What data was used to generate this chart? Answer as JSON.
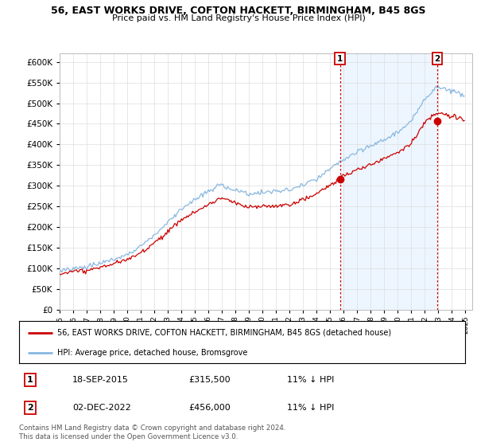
{
  "title": "56, EAST WORKS DRIVE, COFTON HACKETT, BIRMINGHAM, B45 8GS",
  "subtitle": "Price paid vs. HM Land Registry's House Price Index (HPI)",
  "ylim": [
    0,
    620000
  ],
  "yticks": [
    0,
    50000,
    100000,
    150000,
    200000,
    250000,
    300000,
    350000,
    400000,
    450000,
    500000,
    550000,
    600000
  ],
  "xlim_start": 1995.0,
  "xlim_end": 2025.5,
  "xtick_years": [
    1995,
    1996,
    1997,
    1998,
    1999,
    2000,
    2001,
    2002,
    2003,
    2004,
    2005,
    2006,
    2007,
    2008,
    2009,
    2010,
    2011,
    2012,
    2013,
    2014,
    2015,
    2016,
    2017,
    2018,
    2019,
    2020,
    2021,
    2022,
    2023,
    2024,
    2025
  ],
  "hpi_color": "#88b8e0",
  "hpi_fill_color": "#ddeeff",
  "price_color": "#cc0000",
  "vline_color": "#cc0000",
  "transaction1_date": 2015.72,
  "transaction1_price": 315500,
  "transaction2_date": 2022.92,
  "transaction2_price": 456000,
  "legend_property": "56, EAST WORKS DRIVE, COFTON HACKETT, BIRMINGHAM, B45 8GS (detached house)",
  "legend_hpi": "HPI: Average price, detached house, Bromsgrove",
  "table_row1": [
    "1",
    "18-SEP-2015",
    "£315,500",
    "11% ↓ HPI"
  ],
  "table_row2": [
    "2",
    "02-DEC-2022",
    "£456,000",
    "11% ↓ HPI"
  ],
  "footnote": "Contains HM Land Registry data © Crown copyright and database right 2024.\nThis data is licensed under the Open Government Licence v3.0.",
  "background_color": "#ffffff",
  "grid_color": "#dddddd"
}
